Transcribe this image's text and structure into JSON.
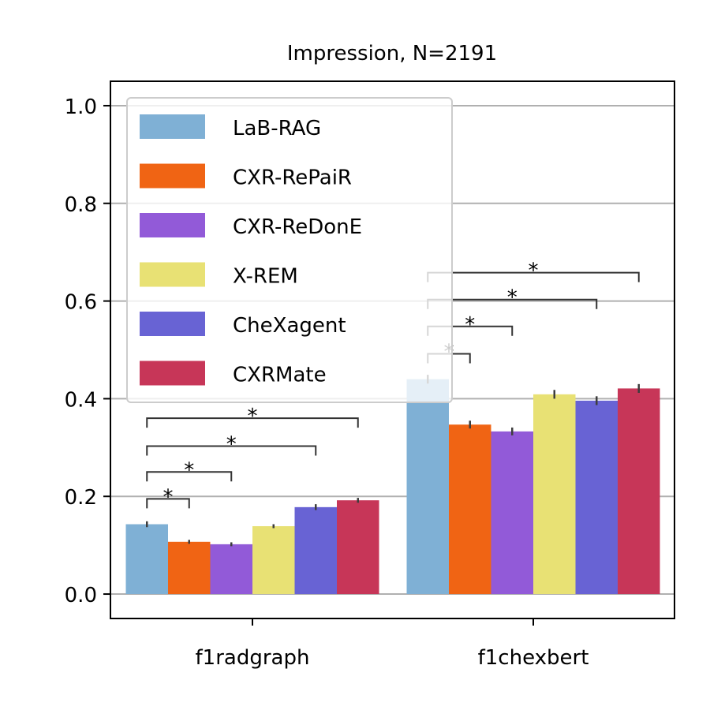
{
  "chart_data": {
    "type": "bar",
    "title": "Impression, N=2191",
    "xlabel": "",
    "ylabel": "",
    "categories": [
      "f1radgraph",
      "f1chexbert"
    ],
    "ylim": [
      -0.05,
      1.05
    ],
    "yticks": [
      "0.0",
      "0.2",
      "0.4",
      "0.6",
      "0.8",
      "1.0"
    ],
    "grid": "y",
    "legend_position": "upper-left",
    "series": [
      {
        "name": "LaB-RAG",
        "color": "#7fb0d5",
        "values": [
          0.143,
          0.44
        ],
        "err": [
          0.006,
          0.009
        ]
      },
      {
        "name": "CXR-RePaiR",
        "color": "#f06414",
        "values": [
          0.107,
          0.347
        ],
        "err": [
          0.004,
          0.008
        ]
      },
      {
        "name": "CXR-ReDonE",
        "color": "#925ad8",
        "values": [
          0.102,
          0.333
        ],
        "err": [
          0.004,
          0.008
        ]
      },
      {
        "name": "X-REM",
        "color": "#e8e174",
        "values": [
          0.139,
          0.409
        ],
        "err": [
          0.004,
          0.009
        ]
      },
      {
        "name": "CheXagent",
        "color": "#6863d4",
        "values": [
          0.178,
          0.396
        ],
        "err": [
          0.006,
          0.009
        ]
      },
      {
        "name": "CXRMate",
        "color": "#c73658",
        "values": [
          0.192,
          0.421
        ],
        "err": [
          0.005,
          0.009
        ]
      }
    ],
    "annotations": [
      {
        "category": 0,
        "from": 0,
        "to": 1,
        "y": 0.195,
        "label": "*"
      },
      {
        "category": 0,
        "from": 0,
        "to": 2,
        "y": 0.25,
        "label": "*"
      },
      {
        "category": 0,
        "from": 0,
        "to": 4,
        "y": 0.303,
        "label": "*"
      },
      {
        "category": 0,
        "from": 0,
        "to": 5,
        "y": 0.36,
        "label": "*"
      },
      {
        "category": 1,
        "from": 0,
        "to": 1,
        "y": 0.492,
        "label": "*"
      },
      {
        "category": 1,
        "from": 0,
        "to": 2,
        "y": 0.548,
        "label": "*"
      },
      {
        "category": 1,
        "from": 0,
        "to": 4,
        "y": 0.603,
        "label": "*"
      },
      {
        "category": 1,
        "from": 0,
        "to": 5,
        "y": 0.658,
        "label": "*"
      }
    ]
  }
}
